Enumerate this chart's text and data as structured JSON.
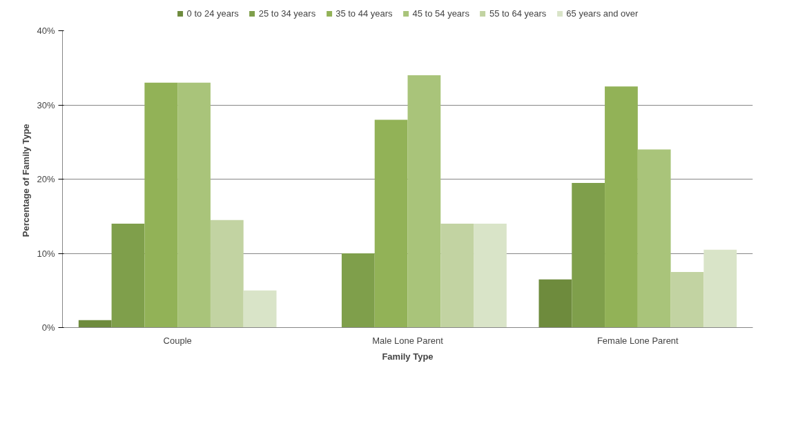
{
  "chart_data": {
    "type": "bar",
    "xlabel": "Family Type",
    "ylabel": "Percentage of  Family Type",
    "categories": [
      "Couple",
      "Male Lone Parent",
      "Female Lone Parent"
    ],
    "series": [
      {
        "name": "0 to 24 years",
        "color": "#6e8b3d",
        "values": [
          1,
          0,
          6.5
        ]
      },
      {
        "name": "25 to 34 years",
        "color": "#7f9f4b",
        "values": [
          14,
          10,
          19.5
        ]
      },
      {
        "name": "35 to 44 years",
        "color": "#92b257",
        "values": [
          33,
          28,
          32.5
        ]
      },
      {
        "name": "45 to 54 years",
        "color": "#a9c47a",
        "values": [
          33,
          34,
          24
        ]
      },
      {
        "name": "55 to 64 years",
        "color": "#c2d3a2",
        "values": [
          14.5,
          14,
          7.5
        ]
      },
      {
        "name": "65 years and over",
        "color": "#d9e4c8",
        "values": [
          5,
          14,
          10.5
        ]
      }
    ],
    "ylim": [
      0,
      40
    ],
    "yticks": [
      {
        "value": 0,
        "label": "0%"
      },
      {
        "value": 10,
        "label": "10%"
      },
      {
        "value": 20,
        "label": "20%"
      },
      {
        "value": 30,
        "label": "30%"
      },
      {
        "value": 40,
        "label": "40%"
      }
    ],
    "grid": "y",
    "legend": "top"
  }
}
